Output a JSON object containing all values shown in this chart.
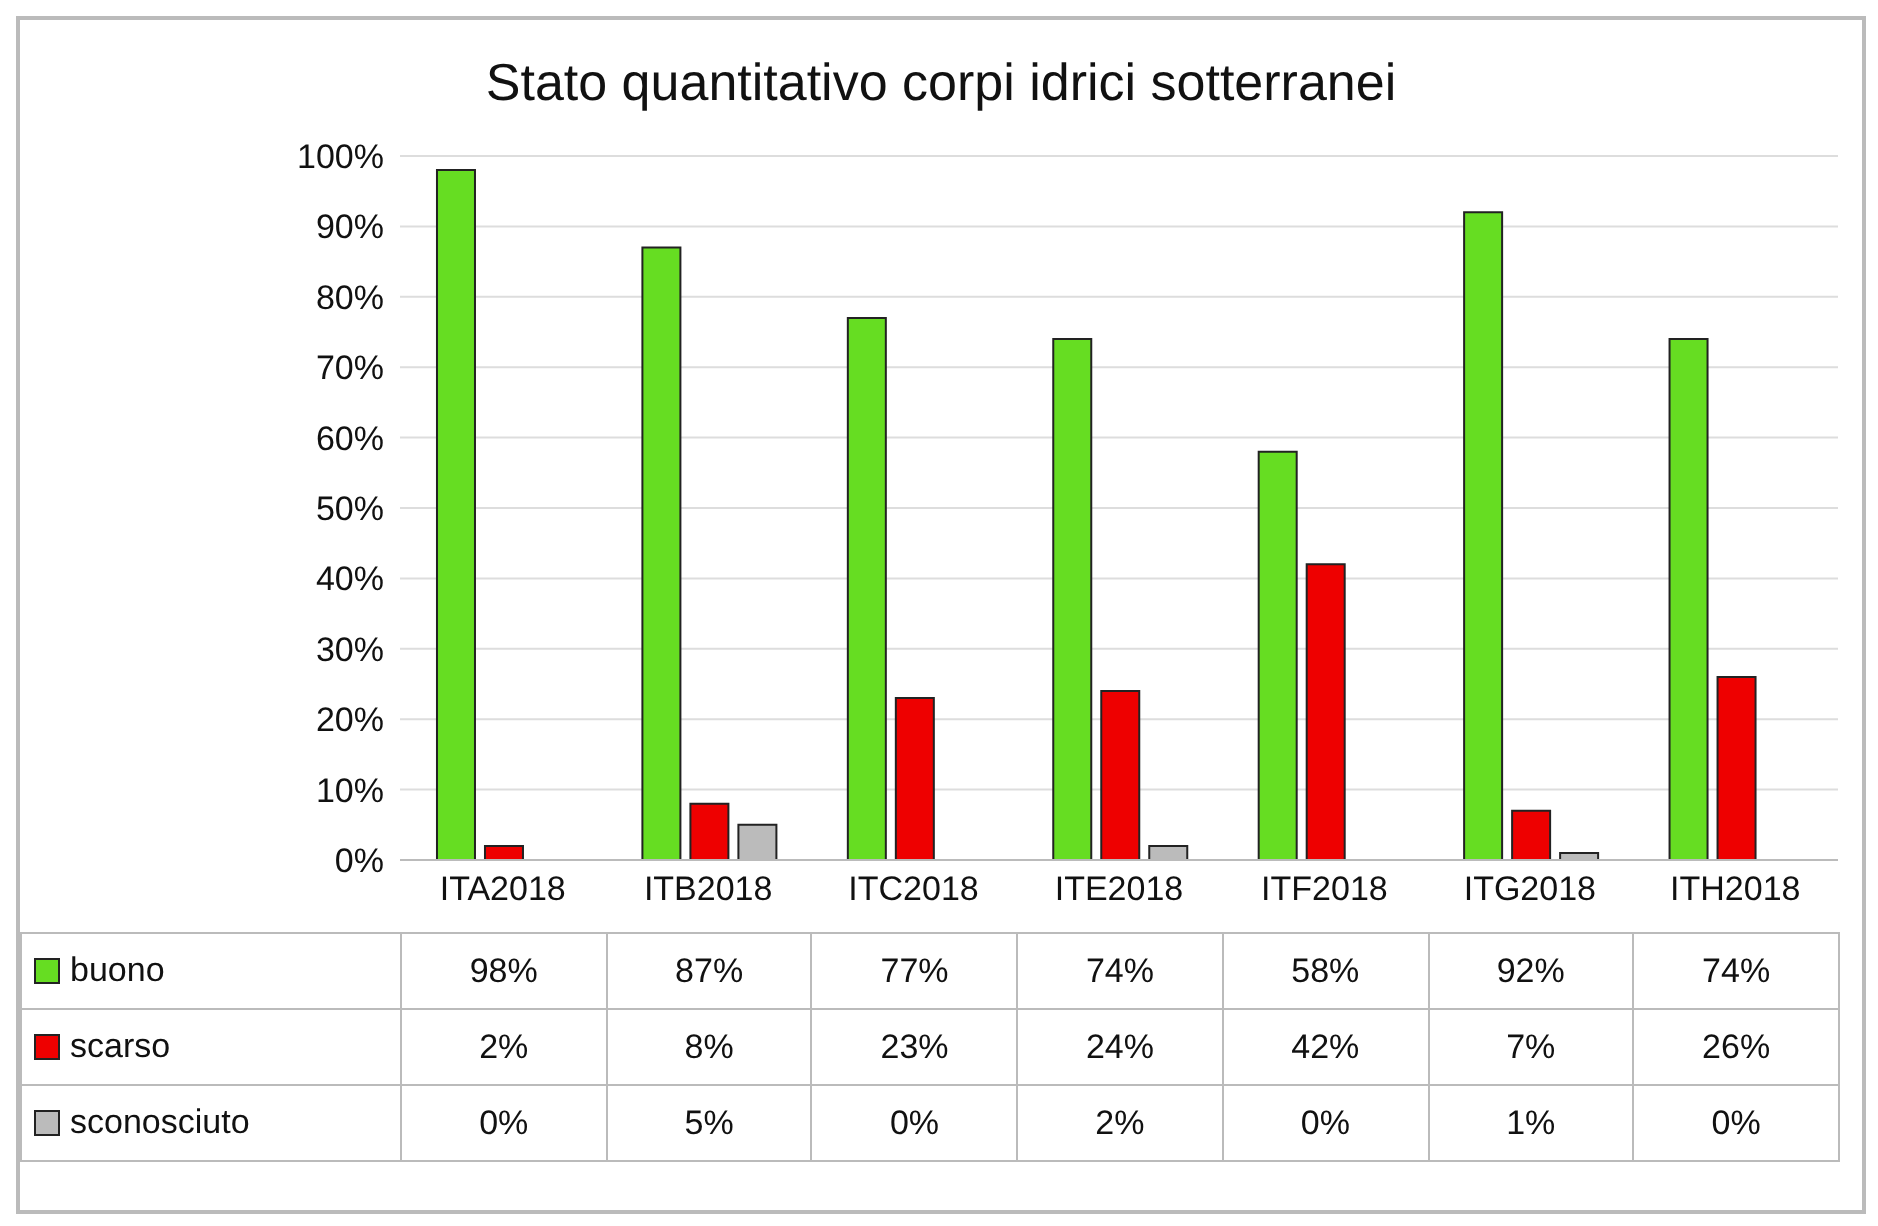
{
  "chart_data": {
    "type": "bar",
    "title": "Stato quantitativo corpi idrici sotterranei",
    "categories": [
      "ITA2018",
      "ITB2018",
      "ITC2018",
      "ITE2018",
      "ITF2018",
      "ITG2018",
      "ITH2018"
    ],
    "series": [
      {
        "name": "buono",
        "color": "#66dd22",
        "values": [
          98,
          87,
          77,
          74,
          58,
          92,
          74
        ],
        "value_labels": [
          "98%",
          "87%",
          "77%",
          "74%",
          "58%",
          "92%",
          "74%"
        ]
      },
      {
        "name": "scarso",
        "color": "#ee0000",
        "values": [
          2,
          8,
          23,
          24,
          42,
          7,
          26
        ],
        "value_labels": [
          "2%",
          "8%",
          "23%",
          "24%",
          "42%",
          "7%",
          "26%"
        ]
      },
      {
        "name": "sconosciuto",
        "color": "#bbbbbb",
        "values": [
          0,
          5,
          0,
          2,
          0,
          1,
          0
        ],
        "value_labels": [
          "0%",
          "5%",
          "0%",
          "2%",
          "0%",
          "1%",
          "0%"
        ]
      }
    ],
    "ylim": [
      0,
      100
    ],
    "yticks": [
      {
        "value": 0,
        "label": "0%"
      },
      {
        "value": 10,
        "label": "10%"
      },
      {
        "value": 20,
        "label": "20%"
      },
      {
        "value": 30,
        "label": "30%"
      },
      {
        "value": 40,
        "label": "40%"
      },
      {
        "value": 50,
        "label": "50%"
      },
      {
        "value": 60,
        "label": "60%"
      },
      {
        "value": 70,
        "label": "70%"
      },
      {
        "value": 80,
        "label": "80%"
      },
      {
        "value": 90,
        "label": "90%"
      },
      {
        "value": 100,
        "label": "100%"
      }
    ],
    "grid": "y",
    "legend": "bottom"
  }
}
